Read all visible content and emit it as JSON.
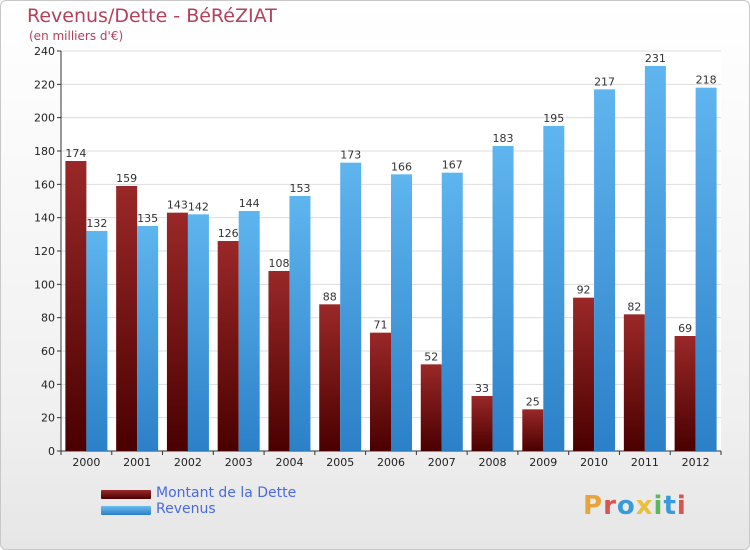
{
  "header": {
    "title": "Revenus/Dette - BéRéZIAT",
    "subtitle": "(en milliers d'€)"
  },
  "brand": {
    "letters": [
      "P",
      "r",
      "o",
      "x",
      "i",
      "t",
      "i"
    ],
    "colors": [
      "#e8a33a",
      "#d9534f",
      "#3a9ad9",
      "#e8c03a",
      "#5cb85c",
      "#3a9ad9",
      "#d9534f"
    ]
  },
  "chart_data": {
    "type": "bar",
    "categories": [
      "2000",
      "2001",
      "2002",
      "2003",
      "2004",
      "2005",
      "2006",
      "2007",
      "2008",
      "2009",
      "2010",
      "2011",
      "2012"
    ],
    "series": [
      {
        "name": "Montant de la Dette",
        "color": "#8b1a1a",
        "values": [
          174,
          159,
          143,
          126,
          108,
          88,
          71,
          52,
          33,
          25,
          92,
          82,
          69
        ]
      },
      {
        "name": "Revenus",
        "color": "#4da6e8",
        "values": [
          132,
          135,
          142,
          144,
          153,
          173,
          166,
          167,
          183,
          195,
          217,
          231,
          218
        ]
      }
    ],
    "ylim": [
      0,
      240
    ],
    "yticks": [
      0,
      20,
      40,
      60,
      80,
      100,
      120,
      140,
      160,
      180,
      200,
      220,
      240
    ],
    "grid": true,
    "legend_position": "bottom-left"
  }
}
